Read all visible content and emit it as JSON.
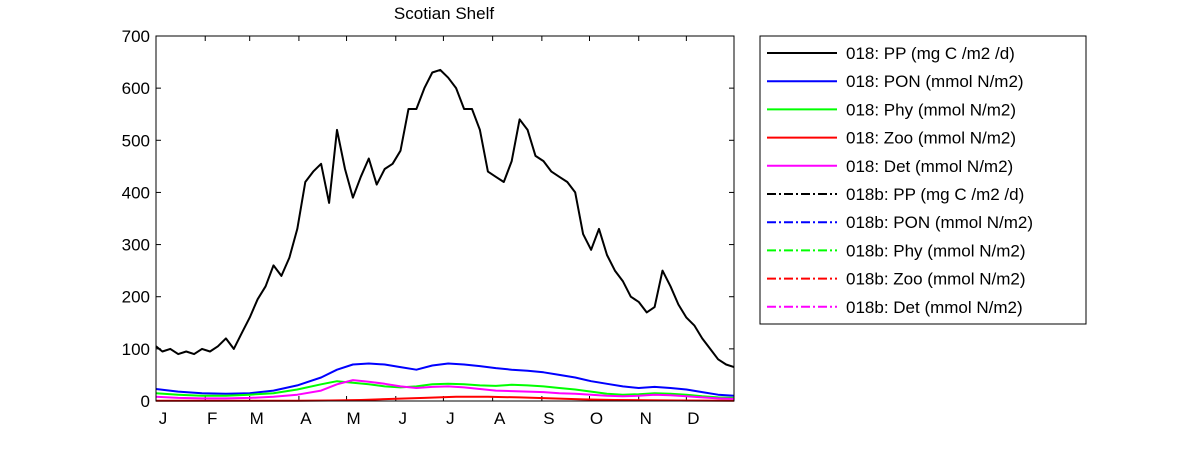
{
  "chart_data": {
    "type": "line",
    "title": "Scotian Shelf",
    "xlabel": "",
    "ylabel": "",
    "ylim": [
      0,
      700
    ],
    "xlim": [
      1,
      365
    ],
    "yticks": [
      0,
      100,
      200,
      300,
      400,
      500,
      600,
      700
    ],
    "xtick_labels": [
      "J",
      "F",
      "M",
      "A",
      "M",
      "J",
      "J",
      "A",
      "S",
      "O",
      "N",
      "D"
    ],
    "xtick_days": [
      1,
      32,
      60,
      91,
      121,
      152,
      182,
      213,
      244,
      274,
      305,
      335
    ],
    "legend_position": "outside-right",
    "grid": false,
    "series": [
      {
        "name": "018: PP (mg C /m2 /d)",
        "color": "#000000",
        "dash": "solid",
        "x": [
          1,
          5,
          10,
          15,
          20,
          25,
          30,
          35,
          40,
          45,
          50,
          55,
          60,
          65,
          70,
          75,
          80,
          85,
          90,
          95,
          100,
          105,
          110,
          115,
          120,
          125,
          130,
          135,
          140,
          145,
          150,
          155,
          160,
          165,
          170,
          175,
          180,
          185,
          190,
          195,
          200,
          205,
          210,
          215,
          220,
          225,
          230,
          235,
          240,
          245,
          250,
          255,
          260,
          265,
          270,
          275,
          280,
          285,
          290,
          295,
          300,
          305,
          310,
          315,
          320,
          325,
          330,
          335,
          340,
          345,
          350,
          355,
          360,
          365
        ],
        "values": [
          105,
          95,
          100,
          90,
          95,
          90,
          100,
          95,
          105,
          120,
          100,
          130,
          160,
          195,
          220,
          260,
          240,
          275,
          330,
          420,
          440,
          455,
          380,
          520,
          445,
          390,
          430,
          465,
          415,
          445,
          455,
          480,
          560,
          560,
          600,
          630,
          635,
          620,
          600,
          560,
          560,
          520,
          440,
          430,
          420,
          460,
          540,
          520,
          470,
          460,
          440,
          430,
          420,
          400,
          320,
          290,
          330,
          280,
          250,
          230,
          200,
          190,
          170,
          180,
          250,
          220,
          185,
          160,
          145,
          120,
          100,
          80,
          70,
          65
        ]
      },
      {
        "name": "018: PON (mmol N/m2)",
        "color": "#0000ff",
        "dash": "solid",
        "x": [
          1,
          15,
          30,
          45,
          60,
          75,
          90,
          105,
          115,
          125,
          135,
          145,
          155,
          165,
          175,
          185,
          195,
          205,
          215,
          225,
          235,
          245,
          255,
          265,
          275,
          285,
          295,
          305,
          315,
          325,
          335,
          345,
          355,
          365
        ],
        "values": [
          23,
          18,
          15,
          14,
          15,
          20,
          30,
          45,
          60,
          70,
          72,
          70,
          65,
          60,
          68,
          72,
          70,
          67,
          63,
          60,
          58,
          55,
          50,
          45,
          38,
          33,
          28,
          25,
          27,
          25,
          22,
          17,
          12,
          10
        ]
      },
      {
        "name": "018: Phy (mmol N/m2)",
        "color": "#00ff00",
        "dash": "solid",
        "x": [
          1,
          15,
          30,
          45,
          60,
          75,
          90,
          105,
          115,
          125,
          135,
          145,
          155,
          165,
          175,
          185,
          195,
          205,
          215,
          225,
          235,
          245,
          255,
          265,
          275,
          285,
          295,
          305,
          315,
          325,
          335,
          345,
          355,
          365
        ],
        "values": [
          15,
          12,
          10,
          10,
          12,
          15,
          22,
          32,
          38,
          35,
          32,
          28,
          26,
          28,
          32,
          33,
          32,
          30,
          29,
          31,
          30,
          28,
          25,
          22,
          18,
          14,
          12,
          13,
          15,
          14,
          12,
          9,
          7,
          6
        ]
      },
      {
        "name": "018: Zoo (mmol N/m2)",
        "color": "#ff0000",
        "dash": "solid",
        "x": [
          1,
          30,
          60,
          90,
          110,
          130,
          150,
          170,
          190,
          210,
          230,
          250,
          270,
          290,
          310,
          330,
          350,
          365
        ],
        "values": [
          0.5,
          0.3,
          0.3,
          0.4,
          1,
          2,
          4,
          6,
          8,
          8,
          7,
          5,
          3,
          2,
          1.5,
          1,
          0.8,
          0.5
        ]
      },
      {
        "name": "018: Det (mmol N/m2)",
        "color": "#ff00ff",
        "dash": "solid",
        "x": [
          1,
          15,
          30,
          45,
          60,
          75,
          90,
          105,
          115,
          125,
          135,
          145,
          155,
          165,
          175,
          185,
          195,
          205,
          215,
          225,
          235,
          245,
          255,
          265,
          275,
          285,
          295,
          305,
          315,
          325,
          335,
          345,
          355,
          365
        ],
        "values": [
          8,
          6,
          5,
          5,
          6,
          8,
          12,
          20,
          32,
          40,
          37,
          33,
          28,
          25,
          27,
          28,
          26,
          23,
          20,
          19,
          18,
          17,
          15,
          14,
          12,
          10,
          9,
          10,
          12,
          11,
          9,
          7,
          5,
          4
        ]
      },
      {
        "name": "018b: PP (mg C /m2 /d)",
        "color": "#000000",
        "dash": "dashdot",
        "x": [],
        "values": []
      },
      {
        "name": "018b: PON (mmol N/m2)",
        "color": "#0000ff",
        "dash": "dashdot",
        "x": [],
        "values": []
      },
      {
        "name": "018b: Phy (mmol N/m2)",
        "color": "#00ff00",
        "dash": "dashdot",
        "x": [],
        "values": []
      },
      {
        "name": "018b: Zoo (mmol N/m2)",
        "color": "#ff0000",
        "dash": "dashdot",
        "x": [],
        "values": []
      },
      {
        "name": "018b: Det (mmol N/m2)",
        "color": "#ff00ff",
        "dash": "dashdot",
        "x": [],
        "values": []
      }
    ]
  }
}
